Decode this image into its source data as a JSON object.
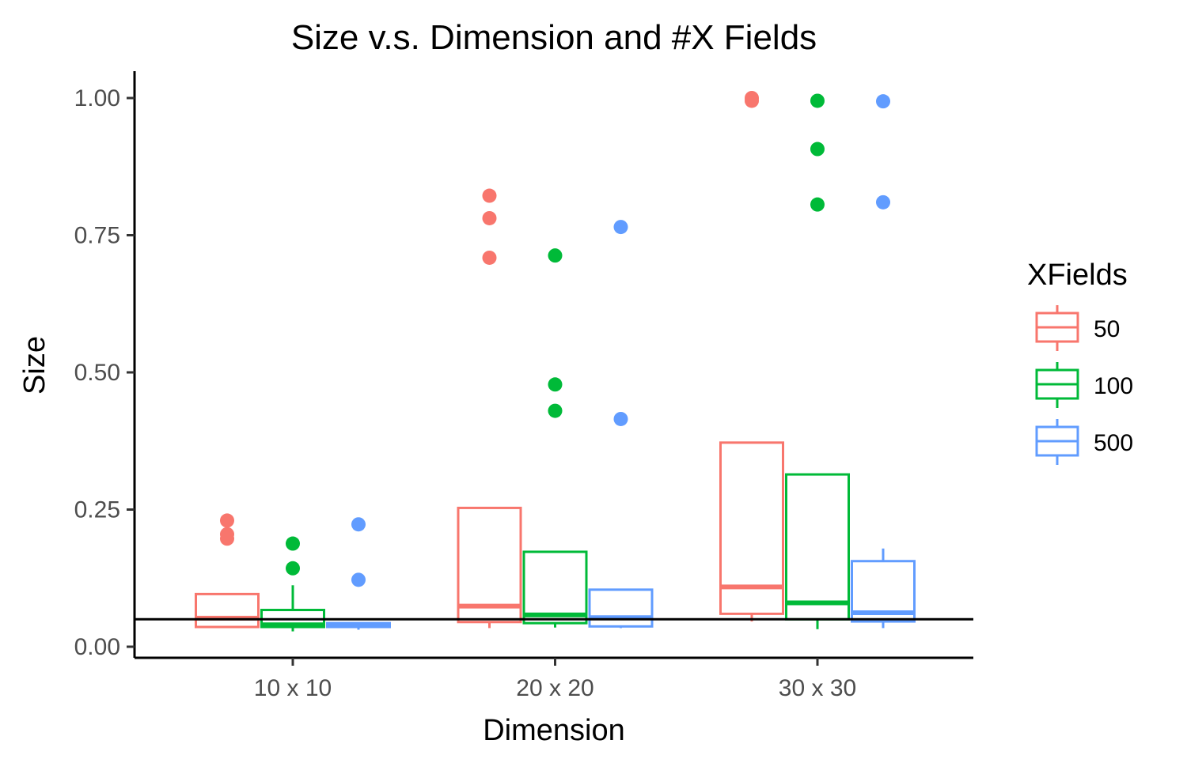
{
  "chart_data": {
    "type": "boxplot",
    "title": "Size v.s. Dimension and #X Fields",
    "xlabel": "Dimension",
    "ylabel": "Size",
    "categories": [
      "10 x 10",
      "20 x 20",
      "30 x 30"
    ],
    "ylim": [
      -0.02,
      1.05
    ],
    "yticks": [
      0.0,
      0.25,
      0.5,
      0.75,
      1.0
    ],
    "ytick_labels": [
      "0.00",
      "0.25",
      "0.50",
      "0.75",
      "1.00"
    ],
    "grid": false,
    "reference_line": {
      "y": 0.05,
      "color": "#000000"
    },
    "legend": {
      "title": "XFields",
      "position": "right"
    },
    "series": [
      {
        "name": "50",
        "color": "#F8766D",
        "boxes": [
          {
            "category": "10 x 10",
            "whisker_low": 0.036,
            "q1": 0.036,
            "median": 0.052,
            "q3": 0.096,
            "whisker_high": 0.096,
            "outliers": [
              0.23,
              0.205,
              0.197
            ]
          },
          {
            "category": "20 x 20",
            "whisker_low": 0.034,
            "q1": 0.045,
            "median": 0.074,
            "q3": 0.253,
            "whisker_high": 0.253,
            "outliers": [
              0.822,
              0.781,
              0.709
            ]
          },
          {
            "category": "30 x 30",
            "whisker_low": 0.046,
            "q1": 0.06,
            "median": 0.109,
            "q3": 0.372,
            "whisker_high": 0.372,
            "outliers": [
              1.0,
              0.995
            ]
          }
        ]
      },
      {
        "name": "100",
        "color": "#00BA38",
        "boxes": [
          {
            "category": "10 x 10",
            "whisker_low": 0.028,
            "q1": 0.036,
            "median": 0.04,
            "q3": 0.067,
            "whisker_high": 0.112,
            "outliers": [
              0.188,
              0.143
            ]
          },
          {
            "category": "20 x 20",
            "whisker_low": 0.035,
            "q1": 0.043,
            "median": 0.058,
            "q3": 0.173,
            "whisker_high": 0.173,
            "outliers": [
              0.713,
              0.478,
              0.43
            ]
          },
          {
            "category": "30 x 30",
            "whisker_low": 0.032,
            "q1": 0.05,
            "median": 0.08,
            "q3": 0.314,
            "whisker_high": 0.314,
            "outliers": [
              0.995,
              0.907,
              0.806
            ]
          }
        ]
      },
      {
        "name": "500",
        "color": "#619CFF",
        "boxes": [
          {
            "category": "10 x 10",
            "whisker_low": 0.031,
            "q1": 0.036,
            "median": 0.04,
            "q3": 0.043,
            "whisker_high": 0.043,
            "outliers": [
              0.223,
              0.122
            ]
          },
          {
            "category": "20 x 20",
            "whisker_low": 0.034,
            "q1": 0.037,
            "median": 0.053,
            "q3": 0.104,
            "whisker_high": 0.104,
            "outliers": [
              0.765,
              0.415
            ]
          },
          {
            "category": "30 x 30",
            "whisker_low": 0.034,
            "q1": 0.046,
            "median": 0.062,
            "q3": 0.156,
            "whisker_high": 0.179,
            "outliers": [
              0.994,
              0.81
            ]
          }
        ]
      }
    ]
  }
}
